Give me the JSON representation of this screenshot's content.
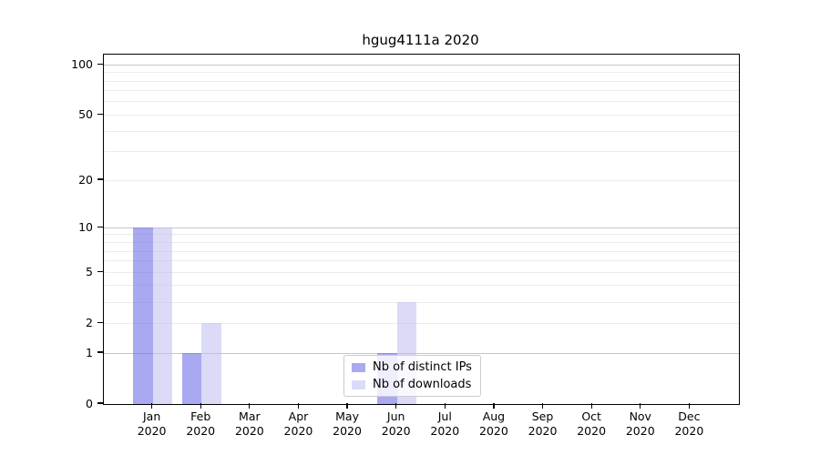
{
  "title": "hgug4111a 2020",
  "legend": {
    "items": [
      {
        "label": "Nb of distinct IPs",
        "color": "rgba(98,98,230,0.55)"
      },
      {
        "label": "Nb of downloads",
        "color": "rgba(190,190,243,0.55)"
      }
    ]
  },
  "chart_data": {
    "type": "bar",
    "title": "hgug4111a 2020",
    "categories": [
      "Jan",
      "Feb",
      "Mar",
      "Apr",
      "May",
      "Jun",
      "Jul",
      "Aug",
      "Sep",
      "Oct",
      "Nov",
      "Dec"
    ],
    "category_year": "2020",
    "series": [
      {
        "name": "Nb of distinct IPs",
        "color": "rgba(98,98,230,0.55)",
        "values": [
          10,
          1,
          0,
          0,
          0,
          1,
          0,
          0,
          0,
          0,
          0,
          0
        ]
      },
      {
        "name": "Nb of downloads",
        "color": "rgba(190,190,243,0.55)",
        "values": [
          10,
          2,
          0,
          0,
          0,
          3,
          0,
          0,
          0,
          0,
          0,
          0
        ]
      }
    ],
    "xlabel": "",
    "ylabel": "",
    "yscale": "log1p",
    "yticks": [
      0,
      1,
      2,
      5,
      10,
      20,
      50,
      100
    ],
    "ylim": [
      0,
      115
    ],
    "grid": {
      "major_values": [
        1,
        10,
        100
      ],
      "minor_values": [
        2,
        3,
        4,
        5,
        6,
        7,
        8,
        9,
        20,
        30,
        40,
        50,
        60,
        70,
        80,
        90
      ],
      "major_color": "#c6c6c6",
      "minor_color": "#ebebeb"
    },
    "legend_position": "lower center"
  }
}
